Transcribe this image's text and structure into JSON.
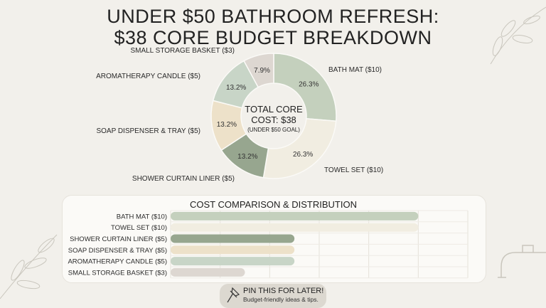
{
  "title_line1": "UNDER $50 BATHROOM REFRESH:",
  "title_line2": "$38 CORE BUDGET BREAKDOWN",
  "chart_data": [
    {
      "type": "pie",
      "donut": true,
      "center_text": [
        "TOTAL CORE",
        "COST: $38",
        "(UNDER $50 GOAL)"
      ],
      "categories": [
        "BATH MAT ($10)",
        "TOWEL SET ($10)",
        "SHOWER CURTAIN LINER ($5)",
        "SOAP DISPENSER & TRAY ($5)",
        "AROMATHERAPY CANDLE ($5)",
        "SMALL STORAGE BASKET ($3)"
      ],
      "values": [
        10,
        10,
        5,
        5,
        5,
        3
      ],
      "data_labels": [
        "26.3%",
        "26.3%",
        "13.2%",
        "13.2%",
        "13.2%",
        "7.9%"
      ],
      "colors": [
        "#c4d0bd",
        "#f1ede1",
        "#97a68f",
        "#ede1c9",
        "#c8d5c7",
        "#ddd7d1"
      ]
    },
    {
      "type": "bar",
      "orientation": "horizontal",
      "title": "COST COMPARISON & DISTRIBUTION",
      "categories": [
        "BATH MAT ($10)",
        "TOWEL SET ($10)",
        "SHOWER CURTAIN LINER ($5)",
        "SOAP DISPENSER & TRAY ($5)",
        "AROMATHERAPY CANDLE ($5)",
        "SMALL STORAGE BASKET ($3)"
      ],
      "values": [
        10,
        10,
        5,
        5,
        5,
        3
      ],
      "xlim": [
        0,
        12
      ],
      "grid": true,
      "colors": [
        "#c4d0bd",
        "#f1ede1",
        "#97a68f",
        "#ede1c9",
        "#c8d5c7",
        "#ddd7d1"
      ]
    }
  ],
  "pin": {
    "icon": "pushpin-icon",
    "title": "PIN THIS FOR LATER!",
    "subtitle": "Budget-friendly ideas & tips."
  }
}
